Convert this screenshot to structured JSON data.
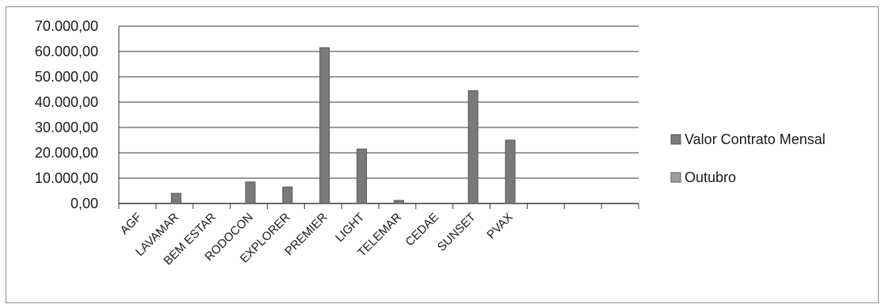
{
  "chart_data": {
    "type": "bar",
    "categories": [
      "AGF",
      "LAVAMAR",
      "BEM ESTAR",
      "RODOCON",
      "EXPLORER",
      "PREMIER",
      "LIGHT",
      "TELEMAR",
      "CEDAE",
      "SUNSET",
      "PVAX",
      "",
      "",
      ""
    ],
    "series": [
      {
        "name": "Valor Contrato Mensal",
        "values": [
          0,
          4000,
          0,
          8500,
          6500,
          61500,
          21500,
          1200,
          0,
          44500,
          25000,
          0,
          0,
          0
        ],
        "color": "#7a7a7a"
      },
      {
        "name": "Outubro",
        "values": [
          0,
          0,
          0,
          0,
          0,
          0,
          0,
          0,
          0,
          0,
          0,
          0,
          0,
          0
        ],
        "color": "#9e9e9e"
      }
    ],
    "y_ticks": [
      "70.000,00",
      "60.000,00",
      "50.000,00",
      "40.000,00",
      "30.000,00",
      "20.000,00",
      "10.000,00",
      "0,00"
    ],
    "ylim": [
      0,
      70000
    ],
    "y_tick_step": 10000,
    "grid": "horizontal",
    "legend_position": "right"
  }
}
